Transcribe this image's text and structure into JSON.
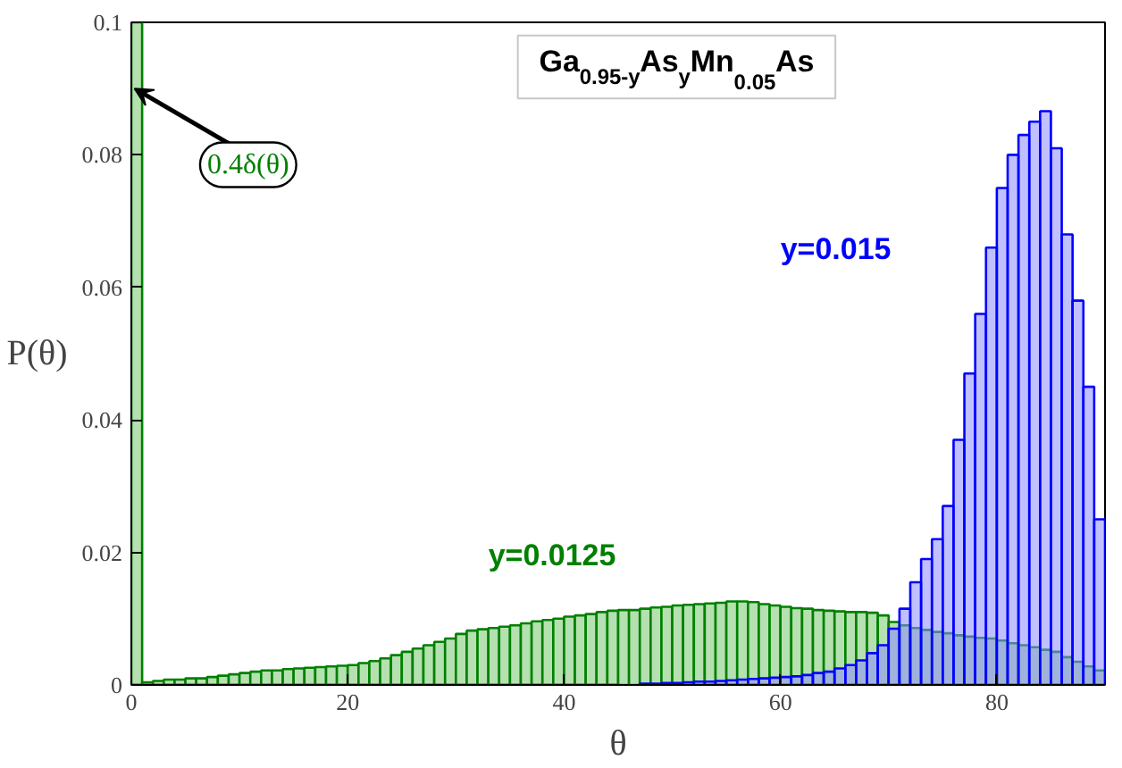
{
  "chart_data": {
    "type": "histogram",
    "title": "Ga$_{0.95-y}$As$_{y}$Mn$_{0.05}$As",
    "xlabel": "θ",
    "ylabel": "P(θ)",
    "bins": [
      0,
      1,
      2,
      3,
      4,
      5,
      6,
      7,
      8,
      9,
      10,
      11,
      12,
      13,
      14,
      15,
      16,
      17,
      18,
      19,
      20,
      21,
      22,
      23,
      24,
      25,
      26,
      27,
      28,
      29,
      30,
      31,
      32,
      33,
      34,
      35,
      36,
      37,
      38,
      39,
      40,
      41,
      42,
      43,
      44,
      45,
      46,
      47,
      48,
      49,
      50,
      51,
      52,
      53,
      54,
      55,
      56,
      57,
      58,
      59,
      60,
      61,
      62,
      63,
      64,
      65,
      66,
      67,
      68,
      69,
      70,
      71,
      72,
      73,
      74,
      75,
      76,
      77,
      78,
      79,
      80,
      81,
      82,
      83,
      84,
      85,
      86,
      87,
      88,
      89,
      90
    ],
    "series": [
      {
        "name": "y=0.0125",
        "color": "#008000",
        "values": [
          0.1,
          0.0004,
          0.0006,
          0.0008,
          0.0008,
          0.001,
          0.001,
          0.0012,
          0.0014,
          0.0016,
          0.0018,
          0.002,
          0.0022,
          0.0022,
          0.0024,
          0.0025,
          0.0026,
          0.0027,
          0.0028,
          0.0029,
          0.003,
          0.0033,
          0.0036,
          0.004,
          0.0045,
          0.005,
          0.0055,
          0.006,
          0.0065,
          0.007,
          0.0077,
          0.0082,
          0.0084,
          0.0086,
          0.0088,
          0.009,
          0.0093,
          0.0096,
          0.0098,
          0.01,
          0.0103,
          0.0105,
          0.0107,
          0.011,
          0.0112,
          0.0113,
          0.0113,
          0.0115,
          0.0117,
          0.0118,
          0.012,
          0.0121,
          0.0122,
          0.0123,
          0.0124,
          0.0126,
          0.0126,
          0.0125,
          0.0122,
          0.012,
          0.0118,
          0.0116,
          0.0115,
          0.0113,
          0.0112,
          0.0111,
          0.011,
          0.011,
          0.0109,
          0.0105,
          0.0095,
          0.009,
          0.0086,
          0.0083,
          0.008,
          0.0078,
          0.0075,
          0.0073,
          0.0071,
          0.007,
          0.0067,
          0.0063,
          0.006,
          0.0057,
          0.0053,
          0.005,
          0.0042,
          0.0035,
          0.0028,
          0.0022
        ]
      },
      {
        "name": "y=0.015",
        "color": "#0000ff",
        "values": [
          0,
          0,
          0,
          0,
          0,
          0,
          0,
          0,
          0,
          0,
          0,
          0,
          0,
          0,
          0,
          0,
          0,
          0,
          0,
          0,
          0,
          0,
          0,
          0,
          0,
          0,
          0,
          0,
          0,
          0,
          0,
          0,
          0,
          0,
          0,
          0,
          0,
          0,
          0,
          0,
          0,
          0,
          0,
          0,
          0,
          null,
          null,
          0.0002,
          0.0002,
          0.0003,
          0.0003,
          0.0004,
          0.0005,
          0.0005,
          0.0006,
          0.0007,
          0.0008,
          0.0009,
          0.001,
          0.0011,
          0.0012,
          0.0013,
          0.0015,
          0.0018,
          0.002,
          0.0025,
          0.003,
          0.0037,
          0.0048,
          0.006,
          0.0085,
          0.0115,
          0.0155,
          0.019,
          0.022,
          0.027,
          0.037,
          0.047,
          0.056,
          0.066,
          0.075,
          0.08,
          0.083,
          0.085,
          0.0866,
          0.081,
          0.068,
          0.058,
          0.045,
          0.025
        ]
      }
    ],
    "xlim": [
      0,
      90
    ],
    "xticks": [
      0,
      20,
      40,
      60,
      80
    ],
    "ylim": [
      0,
      0.1
    ],
    "yticks": [
      0,
      0.02,
      0.04,
      0.06,
      0.08,
      0.1
    ],
    "annotations": [
      {
        "text": "0.4δ(θ)",
        "x": 0,
        "y": 0.09
      }
    ],
    "grid": false,
    "legend": false
  }
}
